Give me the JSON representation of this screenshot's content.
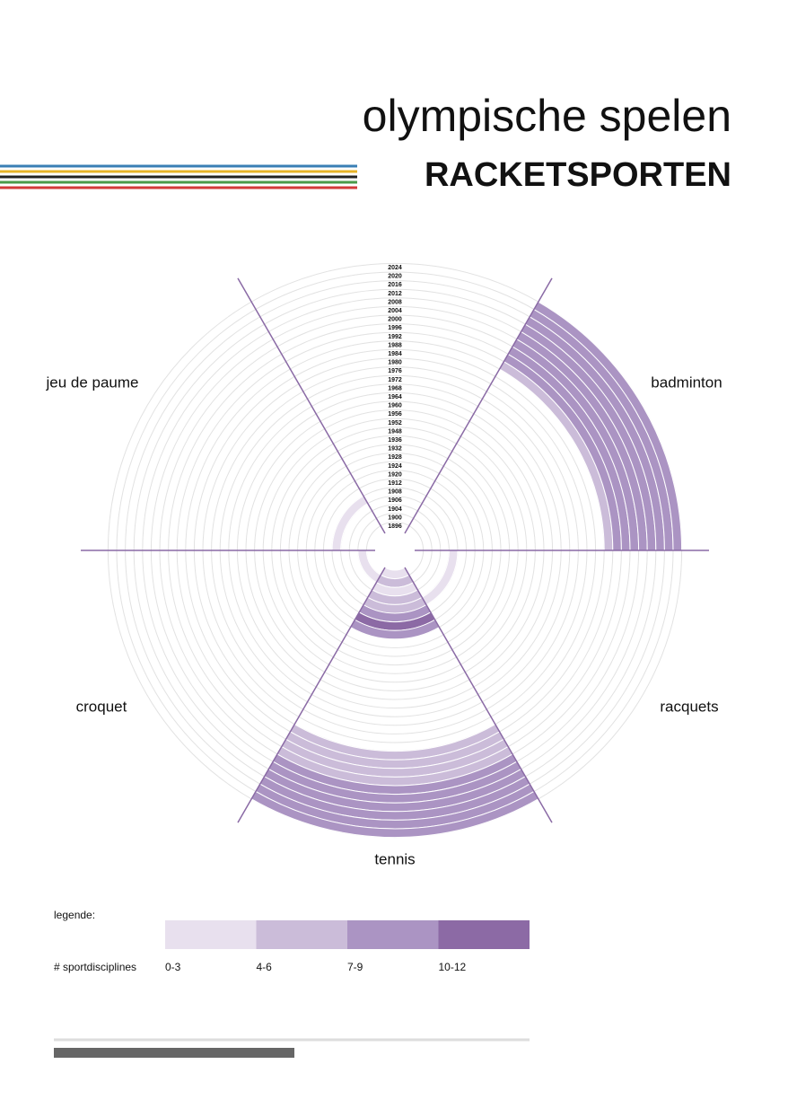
{
  "header": {
    "title": "olympische spelen",
    "subtitle": "RACKETSPORTEN"
  },
  "chart_data": {
    "type": "radial",
    "categories": [
      "1896",
      "1900",
      "1904",
      "1906",
      "1908",
      "1912",
      "1920",
      "1924",
      "1928",
      "1932",
      "1936",
      "1948",
      "1952",
      "1956",
      "1960",
      "1964",
      "1968",
      "1972",
      "1976",
      "1980",
      "1984",
      "1988",
      "1992",
      "1996",
      "2000",
      "2004",
      "2008",
      "2012",
      "2016",
      "2020",
      "2024"
    ],
    "series": [
      {
        "name": "badminton",
        "values": [
          null,
          null,
          null,
          null,
          null,
          null,
          null,
          null,
          null,
          null,
          null,
          null,
          null,
          null,
          null,
          null,
          null,
          null,
          null,
          null,
          null,
          null,
          4,
          8,
          8,
          8,
          8,
          8,
          8,
          8,
          8
        ]
      },
      {
        "name": "jeu de paume",
        "values": [
          null,
          null,
          null,
          null,
          2,
          null,
          null,
          null,
          null,
          null,
          null,
          null,
          null,
          null,
          null,
          null,
          null,
          null,
          null,
          null,
          null,
          null,
          null,
          null,
          null,
          null,
          null,
          null,
          null,
          null,
          null
        ]
      },
      {
        "name": "croquet",
        "values": [
          null,
          3,
          null,
          null,
          null,
          null,
          null,
          null,
          null,
          null,
          null,
          null,
          null,
          null,
          null,
          null,
          null,
          null,
          null,
          null,
          null,
          null,
          null,
          null,
          null,
          null,
          null,
          null,
          null,
          null,
          null
        ]
      },
      {
        "name": "tennis",
        "values": [
          2,
          4,
          2,
          4,
          6,
          8,
          10,
          7,
          null,
          null,
          null,
          null,
          null,
          null,
          null,
          null,
          null,
          null,
          null,
          null,
          null,
          4,
          4,
          4,
          4,
          7,
          7,
          7,
          7,
          7,
          7
        ]
      },
      {
        "name": "racquets",
        "values": [
          null,
          null,
          null,
          null,
          2,
          null,
          null,
          null,
          null,
          null,
          null,
          null,
          null,
          null,
          null,
          null,
          null,
          null,
          null,
          null,
          null,
          null,
          null,
          null,
          null,
          null,
          null,
          null,
          null,
          null,
          null
        ]
      }
    ],
    "legend": {
      "title": "legende:",
      "label": "# sportdisciplines",
      "bins": [
        {
          "value": 3,
          "label": "0-3"
        },
        {
          "value": 6,
          "label": "4-6"
        },
        {
          "value": 9,
          "label": "7-9"
        },
        {
          "value": 12,
          "label": "10-12"
        }
      ],
      "colors": [
        "#e8e0ee",
        "#cbbcd9",
        "#ab94c3",
        "#8c6aa5"
      ]
    },
    "axis_color": "#8a6aa5"
  }
}
